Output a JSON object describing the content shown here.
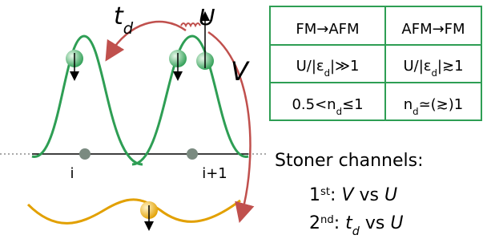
{
  "labels": {
    "hopping": [
      {
        "i": "t"
      },
      {
        "isub": "d"
      }
    ],
    "interaction": [
      {
        "i": "U"
      }
    ],
    "intersite": [
      {
        "i": "V"
      }
    ],
    "site_a": [
      {
        "t": "i"
      }
    ],
    "site_b": [
      {
        "t": "i+1"
      }
    ]
  },
  "table": {
    "header": [
      [
        {
          "t": "FM→AFM"
        }
      ],
      [
        {
          "t": "AFM→FM"
        }
      ]
    ],
    "rows": [
      [
        [
          {
            "t": "U/|ε"
          },
          {
            "sub": "d"
          },
          {
            "t": "|≫1"
          }
        ],
        [
          {
            "t": "U/|ε"
          },
          {
            "sub": "d"
          },
          {
            "t": "|≳1"
          }
        ]
      ],
      [
        [
          {
            "t": "0.5<n"
          },
          {
            "sub": "d"
          },
          {
            "t": "≤1"
          }
        ],
        [
          {
            "t": "n"
          },
          {
            "sub": "d"
          },
          {
            "t": "≃(≳)1"
          }
        ]
      ]
    ]
  },
  "stoner": {
    "title": [
      {
        "t": "Stoner  channels:"
      }
    ],
    "lines": [
      [
        {
          "t": "1"
        },
        {
          "sup": "st"
        },
        {
          "t": ": "
        },
        {
          "i": "V"
        },
        {
          "t": " vs "
        },
        {
          "i": "U"
        }
      ],
      [
        {
          "t": "2"
        },
        {
          "sup": "nd"
        },
        {
          "t": ": "
        },
        {
          "i": "t"
        },
        {
          "isub": "d"
        },
        {
          "t": " vs "
        },
        {
          "i": "U"
        }
      ]
    ]
  }
}
